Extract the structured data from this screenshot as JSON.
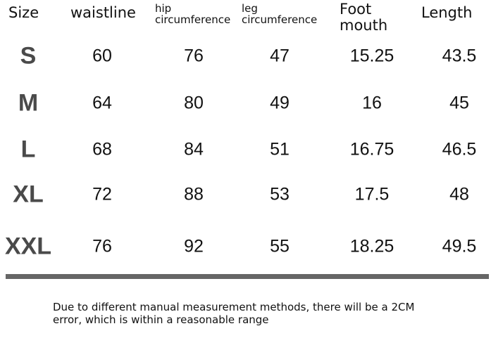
{
  "table": {
    "headers": [
      "Size",
      "waistline",
      "hip circumference",
      "leg circumference",
      "Foot mouth",
      "Length"
    ],
    "rows": [
      [
        "S",
        "60",
        "76",
        "47",
        "15.25",
        "43.5"
      ],
      [
        "M",
        "64",
        "80",
        "49",
        "16",
        "45"
      ],
      [
        "L",
        "68",
        "84",
        "51",
        "16.75",
        "46.5"
      ],
      [
        "XL",
        "72",
        "88",
        "53",
        "17.5",
        "48"
      ],
      [
        "XXL",
        "76",
        "92",
        "55",
        "18.25",
        "49.5"
      ]
    ]
  },
  "note": "Due to different manual measurement methods, there will be a 2CM error, which is within a reasonable range"
}
